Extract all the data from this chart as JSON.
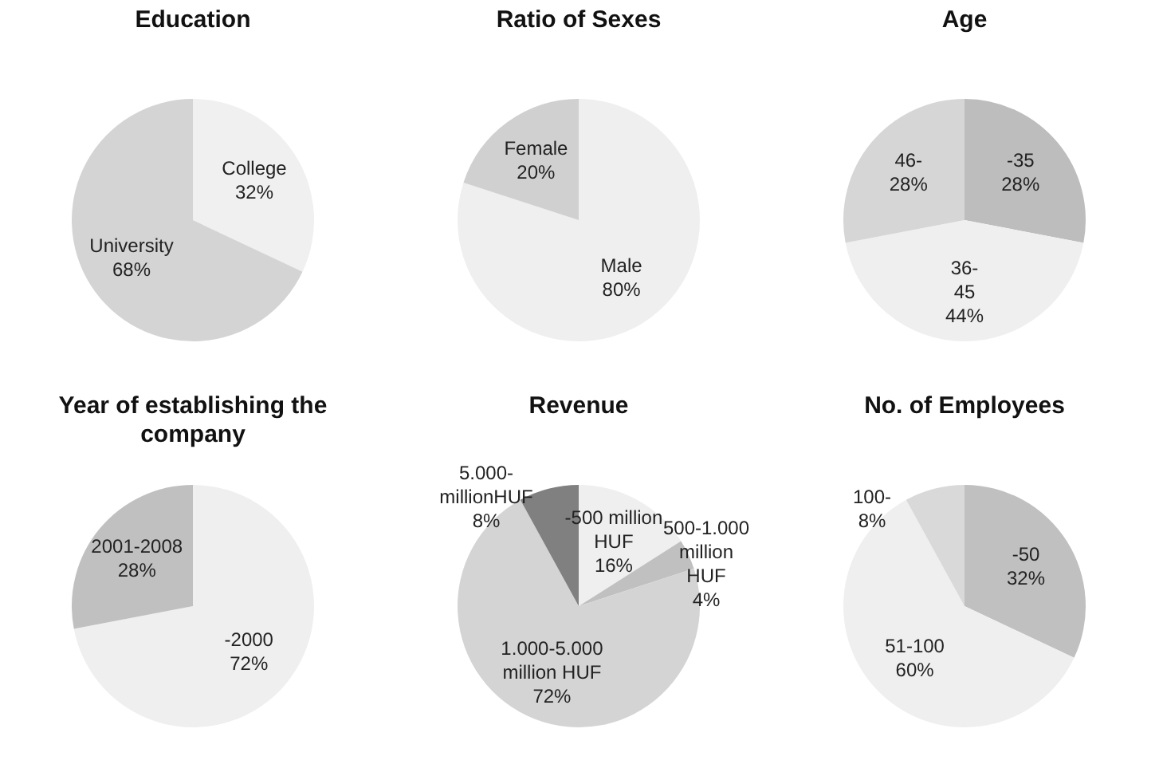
{
  "chart_data": [
    {
      "type": "pie",
      "title": "Education",
      "categories": [
        "College",
        "University"
      ],
      "values": [
        32,
        68
      ],
      "value_labels": [
        "32%",
        "68%"
      ],
      "colors": [
        "#f0f0f0",
        "#d4d4d4"
      ],
      "legend": false
    },
    {
      "type": "pie",
      "title": "Ratio of Sexes",
      "categories": [
        "Male",
        "Female"
      ],
      "values": [
        80,
        20
      ],
      "value_labels": [
        "80%",
        "20%"
      ],
      "colors": [
        "#efefef",
        "#d0d0d0"
      ],
      "legend": false
    },
    {
      "type": "pie",
      "title": "Age",
      "categories": [
        "-35",
        "36-\n45",
        "46-"
      ],
      "values": [
        28,
        44,
        28
      ],
      "value_labels": [
        "28%",
        "44%",
        "28%"
      ],
      "colors": [
        "#bdbdbd",
        "#efefef",
        "#d6d6d6"
      ],
      "legend": false
    },
    {
      "type": "pie",
      "title": "Year of establishing the company",
      "categories": [
        "-2000",
        "2001-2008"
      ],
      "values": [
        72,
        28
      ],
      "value_labels": [
        "72%",
        "28%"
      ],
      "colors": [
        "#efefef",
        "#c0c0c0"
      ],
      "legend": false
    },
    {
      "type": "pie",
      "title": "Revenue",
      "categories": [
        "-500 million\nHUF",
        "500-1.000\nmillion\nHUF",
        "1.000-5.000\nmillion HUF",
        "5.000-\nmillionHUF"
      ],
      "values": [
        16,
        4,
        72,
        8
      ],
      "value_labels": [
        "16%",
        "4%",
        "72%",
        "8%"
      ],
      "colors": [
        "#efefef",
        "#c0c0c0",
        "#d4d4d4",
        "#808080"
      ],
      "legend": false
    },
    {
      "type": "pie",
      "title": "No. of Employees",
      "categories": [
        "-50",
        "51-100",
        "100-"
      ],
      "values": [
        32,
        60,
        8
      ],
      "value_labels": [
        "32%",
        "60%",
        "8%"
      ],
      "colors": [
        "#c0c0c0",
        "#efefef",
        "#d9d9d9"
      ],
      "legend": false
    }
  ]
}
